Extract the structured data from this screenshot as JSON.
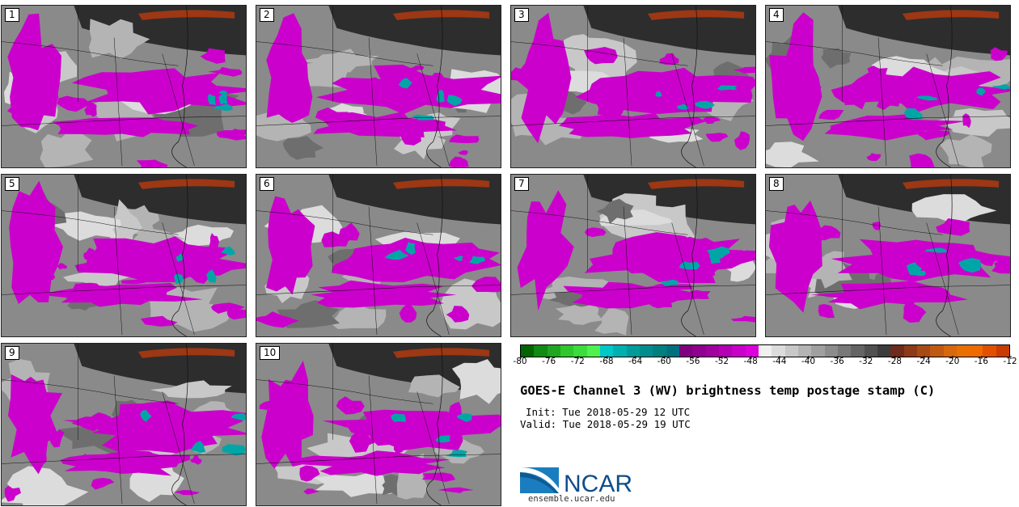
{
  "panels": [
    {
      "label": "1"
    },
    {
      "label": "2"
    },
    {
      "label": "3"
    },
    {
      "label": "4"
    },
    {
      "label": "5"
    },
    {
      "label": "6"
    },
    {
      "label": "7"
    },
    {
      "label": "8"
    },
    {
      "label": "9"
    },
    {
      "label": "10"
    }
  ],
  "colorbar": {
    "segments": [
      "#006400",
      "#108a10",
      "#1fa51f",
      "#2ec82e",
      "#3cdc3c",
      "#50f050",
      "#00c8c8",
      "#00b0b0",
      "#009a9a",
      "#008c8c",
      "#007f7f",
      "#00707f",
      "#7f007f",
      "#8f008f",
      "#a000a0",
      "#b400b4",
      "#c800c8",
      "#dc00dc",
      "#f0f0f0",
      "#dcdcdc",
      "#c8c8c8",
      "#b4b4b4",
      "#a0a0a0",
      "#8c8c8c",
      "#787878",
      "#646464",
      "#505050",
      "#3c3c3c",
      "#6e2a1a",
      "#8c3a18",
      "#a84a14",
      "#c05a10",
      "#d8680c",
      "#e87000",
      "#f06a00",
      "#e05000",
      "#c83c00"
    ],
    "ticks": [
      "-80",
      "-76",
      "-72",
      "-68",
      "-64",
      "-60",
      "-56",
      "-52",
      "-48",
      "-44",
      "-40",
      "-36",
      "-32",
      "-28",
      "-24",
      "-20",
      "-16",
      "-12"
    ]
  },
  "title": "GOES-E Channel 3 (WV) brightness temp postage stamp (C)",
  "init": "Init: Tue 2018-05-29 12 UTC",
  "valid": "Valid: Tue 2018-05-29 19 UTC",
  "logo_text": "NCAR",
  "site": "ensemble.ucar.edu",
  "colors": {
    "moist": "#cc00cc",
    "cold": "#00a6a6",
    "dry": "#2d2d2d",
    "warm": "#b23a10"
  }
}
